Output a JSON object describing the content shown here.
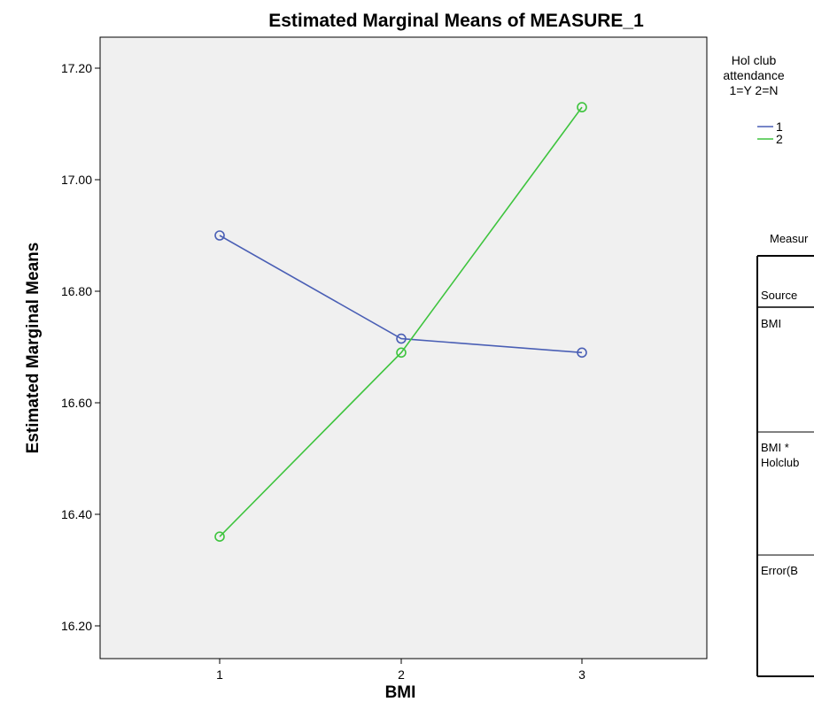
{
  "chart_data": {
    "type": "line",
    "title": "Estimated Marginal Means of MEASURE_1",
    "xlabel": "BMI",
    "ylabel": "Estimated Marginal Means",
    "categories": [
      "1",
      "2",
      "3"
    ],
    "ylim": [
      16.15,
      17.25
    ],
    "yticks": [
      "16.20",
      "16.40",
      "16.60",
      "16.80",
      "17.00",
      "17.20"
    ],
    "grid": false,
    "legend": {
      "title": [
        "Hol club",
        "attendance",
        "1=Y 2=N"
      ],
      "placement": "right"
    },
    "series": [
      {
        "name": "1",
        "color": "#4a5fb5",
        "values": [
          16.9,
          16.715,
          16.69
        ]
      },
      {
        "name": "2",
        "color": "#3ec43e",
        "values": [
          16.36,
          16.69,
          17.13
        ]
      }
    ]
  },
  "side_table": {
    "measure_label": "Measur",
    "header": "Source",
    "rows": [
      "BMI",
      "BMI *",
      "Holclub",
      "Error(B"
    ]
  },
  "colors": {
    "plot_background": "#f0f0f0",
    "border": "#000000"
  }
}
